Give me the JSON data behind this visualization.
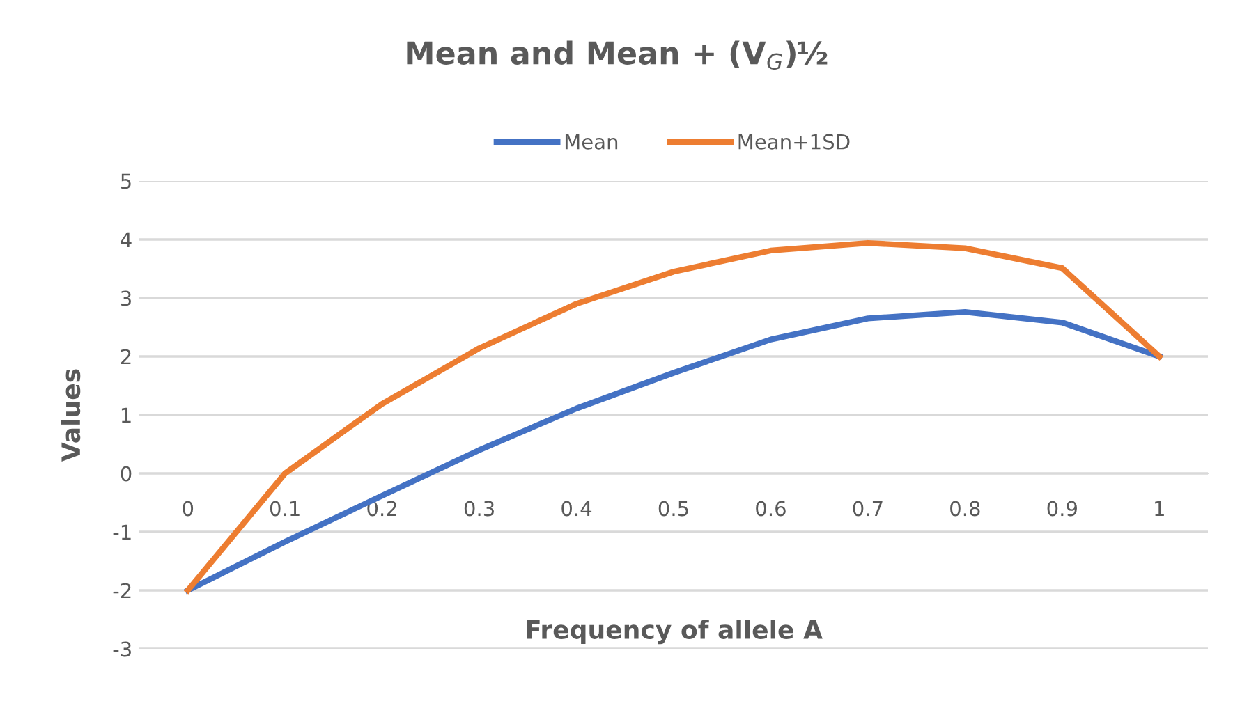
{
  "chart_data": {
    "type": "line",
    "title": "Mean and Mean + (V$_{G}$)½",
    "xlabel": "Frequency of allele A",
    "ylabel": "Values",
    "categories": [
      "0",
      "0.1",
      "0.2",
      "0.3",
      "0.4",
      "0.5",
      "0.6",
      "0.7",
      "0.8",
      "0.9",
      "1"
    ],
    "series": [
      {
        "name": "Mean",
        "color": "#4472c4",
        "values": [
          -2,
          -1.17,
          -0.38,
          0.4,
          1.11,
          1.72,
          2.29,
          2.65,
          2.76,
          2.58,
          2
        ]
      },
      {
        "name": "Mean+1SD",
        "color": "#ed7d31",
        "values": [
          -2,
          0,
          1.19,
          2.14,
          2.9,
          3.45,
          3.81,
          3.94,
          3.85,
          3.51,
          2
        ]
      }
    ],
    "ylim": [
      -3,
      5
    ],
    "yticks": [
      -3,
      -2,
      -1,
      0,
      1,
      2,
      3,
      4,
      5
    ],
    "grid": "y",
    "legend": "top",
    "marker": "none",
    "line_style": "solid"
  }
}
